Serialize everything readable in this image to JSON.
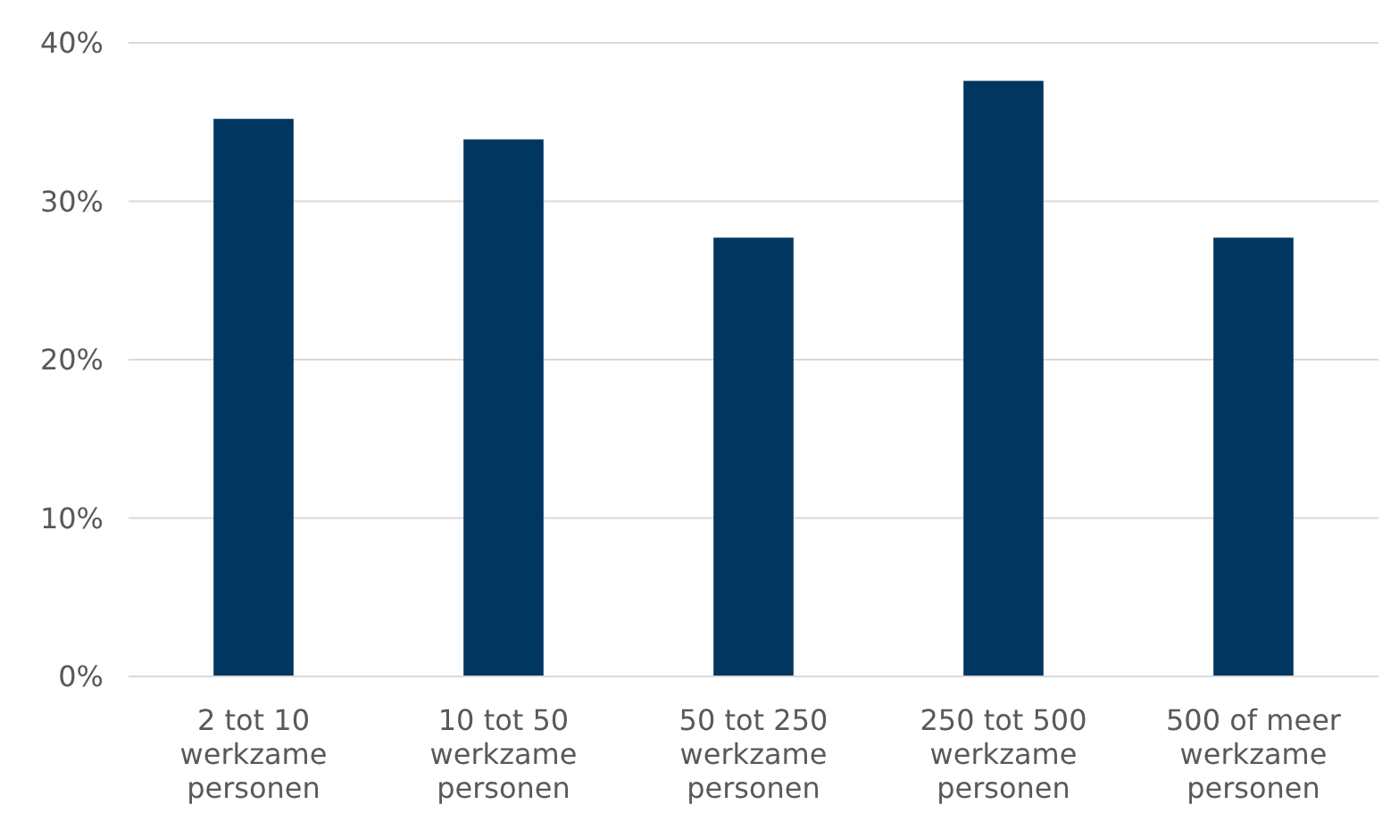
{
  "chart_data": {
    "type": "bar",
    "categories": [
      "2 tot 10 werkzame personen",
      "10 tot 50 werkzame personen",
      "50 tot 250 werkzame personen",
      "250 tot 500 werkzame personen",
      "500 of meer werkzame personen"
    ],
    "values": [
      35.2,
      33.9,
      27.7,
      37.6,
      27.7
    ],
    "color": "#003660",
    "ylim": [
      0,
      40
    ],
    "yticks": [
      {
        "value": 0,
        "label": "0%"
      },
      {
        "value": 10,
        "label": "10%"
      },
      {
        "value": 20,
        "label": "20%"
      },
      {
        "value": 30,
        "label": "30%"
      },
      {
        "value": 40,
        "label": "40%"
      }
    ],
    "grid": "y"
  }
}
